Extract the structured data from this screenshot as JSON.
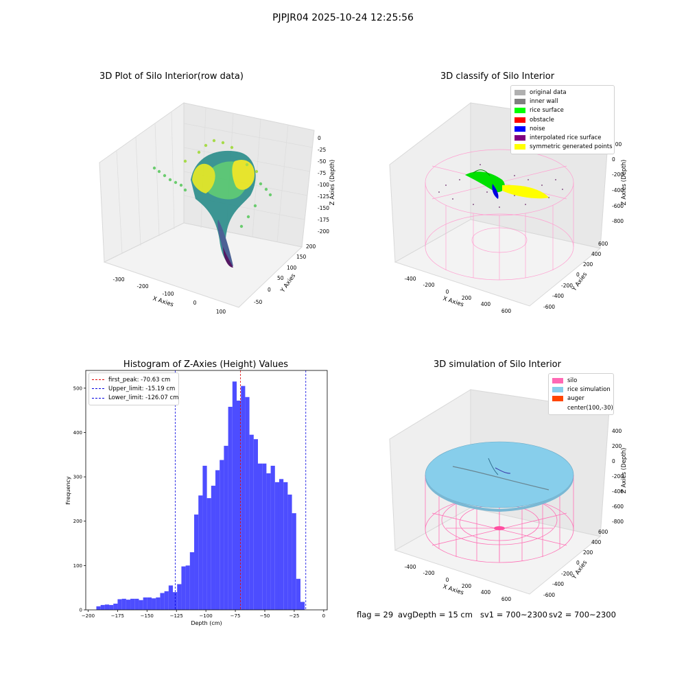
{
  "figure": {
    "suptitle": "PJPJR04 2025-10-24 12:25:56"
  },
  "chart_data": [
    {
      "type": "scatter",
      "subtype": "3d",
      "title": "3D Plot of Silo Interior(row data)",
      "xlabel": "X Axies",
      "ylabel": "Y Axies",
      "zlabel": "Z Axies (Depth)",
      "xticks": [
        "-300",
        "-200",
        "-100",
        "0",
        "100"
      ],
      "yticks": [
        "-50",
        "0",
        "50",
        "100",
        "150",
        "200"
      ],
      "zticks": [
        "0",
        "-25",
        "-50",
        "-75",
        "-100",
        "-125",
        "-150",
        "-175",
        "-200"
      ],
      "colormap": "viridis"
    },
    {
      "type": "scatter",
      "subtype": "3d",
      "title": "3D classify of Silo Interior",
      "xlabel": "X Axies",
      "ylabel": "Y Axies",
      "zlabel": "Z Axies (Depth)",
      "xticks": [
        "-400",
        "-200",
        "0",
        "200",
        "400",
        "600"
      ],
      "yticks": [
        "600",
        "400",
        "200",
        "0",
        "-200",
        "-400",
        "-600"
      ],
      "zticks": [
        "200",
        "0",
        "-200",
        "-400",
        "-600",
        "-800"
      ],
      "legend_position": "top-right",
      "legend": [
        {
          "label": "original data",
          "color": "#b0b0b0"
        },
        {
          "label": "inner wall",
          "color": "#808080"
        },
        {
          "label": "rice surface",
          "color": "#00ff00"
        },
        {
          "label": "obstacle",
          "color": "#ff0000"
        },
        {
          "label": "noise",
          "color": "#0000ff"
        },
        {
          "label": "interpolated rice surface",
          "color": "#800080"
        },
        {
          "label": "symmetric generated points",
          "color": "#ffff00"
        }
      ]
    },
    {
      "type": "bar",
      "subtype": "histogram",
      "title": "Histogram of Z-Axies (Height) Values",
      "xlabel": "Depth (cm)",
      "ylabel": "Frequency",
      "xlim": [
        -202,
        3
      ],
      "ylim": [
        0,
        540
      ],
      "xticks": [
        -200,
        -175,
        -150,
        -125,
        -100,
        -75,
        -50,
        -25,
        0
      ],
      "yticks": [
        0,
        100,
        200,
        300,
        400,
        500
      ],
      "bar_color": "#4d4dff",
      "bin_start": -193,
      "bin_width": 3.61,
      "values": [
        8,
        11,
        12,
        11,
        14,
        24,
        25,
        23,
        25,
        25,
        22,
        28,
        28,
        26,
        28,
        38,
        42,
        55,
        40,
        58,
        98,
        100,
        130,
        215,
        258,
        325,
        252,
        280,
        315,
        338,
        370,
        458,
        515,
        472,
        505,
        480,
        395,
        385,
        330,
        330,
        308,
        325,
        288,
        295,
        288,
        260,
        218,
        70,
        18
      ],
      "vlines": [
        {
          "label": "first_peak: -70.63 cm",
          "x": -70.63,
          "color": "#e00000"
        },
        {
          "label": "Upper_limit: -15.19 cm",
          "x": -15.19,
          "color": "#0000e0"
        },
        {
          "label": "Lower_limit: -126.07 cm",
          "x": -126.07,
          "color": "#0000e0"
        }
      ],
      "legend_position": "top-left"
    },
    {
      "type": "scatter",
      "subtype": "3d",
      "title": "3D simulation of Silo Interior",
      "xlabel": "X Axies",
      "ylabel": "Y Axies",
      "zlabel": "Z Axies (Depth)",
      "xticks": [
        "-400",
        "-200",
        "0",
        "200",
        "400",
        "600"
      ],
      "yticks": [
        "600",
        "400",
        "200",
        "0",
        "-200",
        "-400",
        "-600"
      ],
      "zticks": [
        "400",
        "200",
        "0",
        "-200",
        "-400",
        "-600",
        "-800"
      ],
      "legend_position": "top-right",
      "legend": [
        {
          "label": "silo",
          "color": "#ff69b4"
        },
        {
          "label": "rice simulation",
          "color": "#87ceeb"
        },
        {
          "label": "auger",
          "color": "#ff4500"
        },
        {
          "label": "center(100,-30)",
          "color": "none"
        }
      ]
    }
  ],
  "status": {
    "flag": "flag = 29",
    "avg_depth": "avgDepth = 15 cm",
    "sv1": "sv1 = 700~2300",
    "sv2": "sv2 = 700~2300"
  }
}
